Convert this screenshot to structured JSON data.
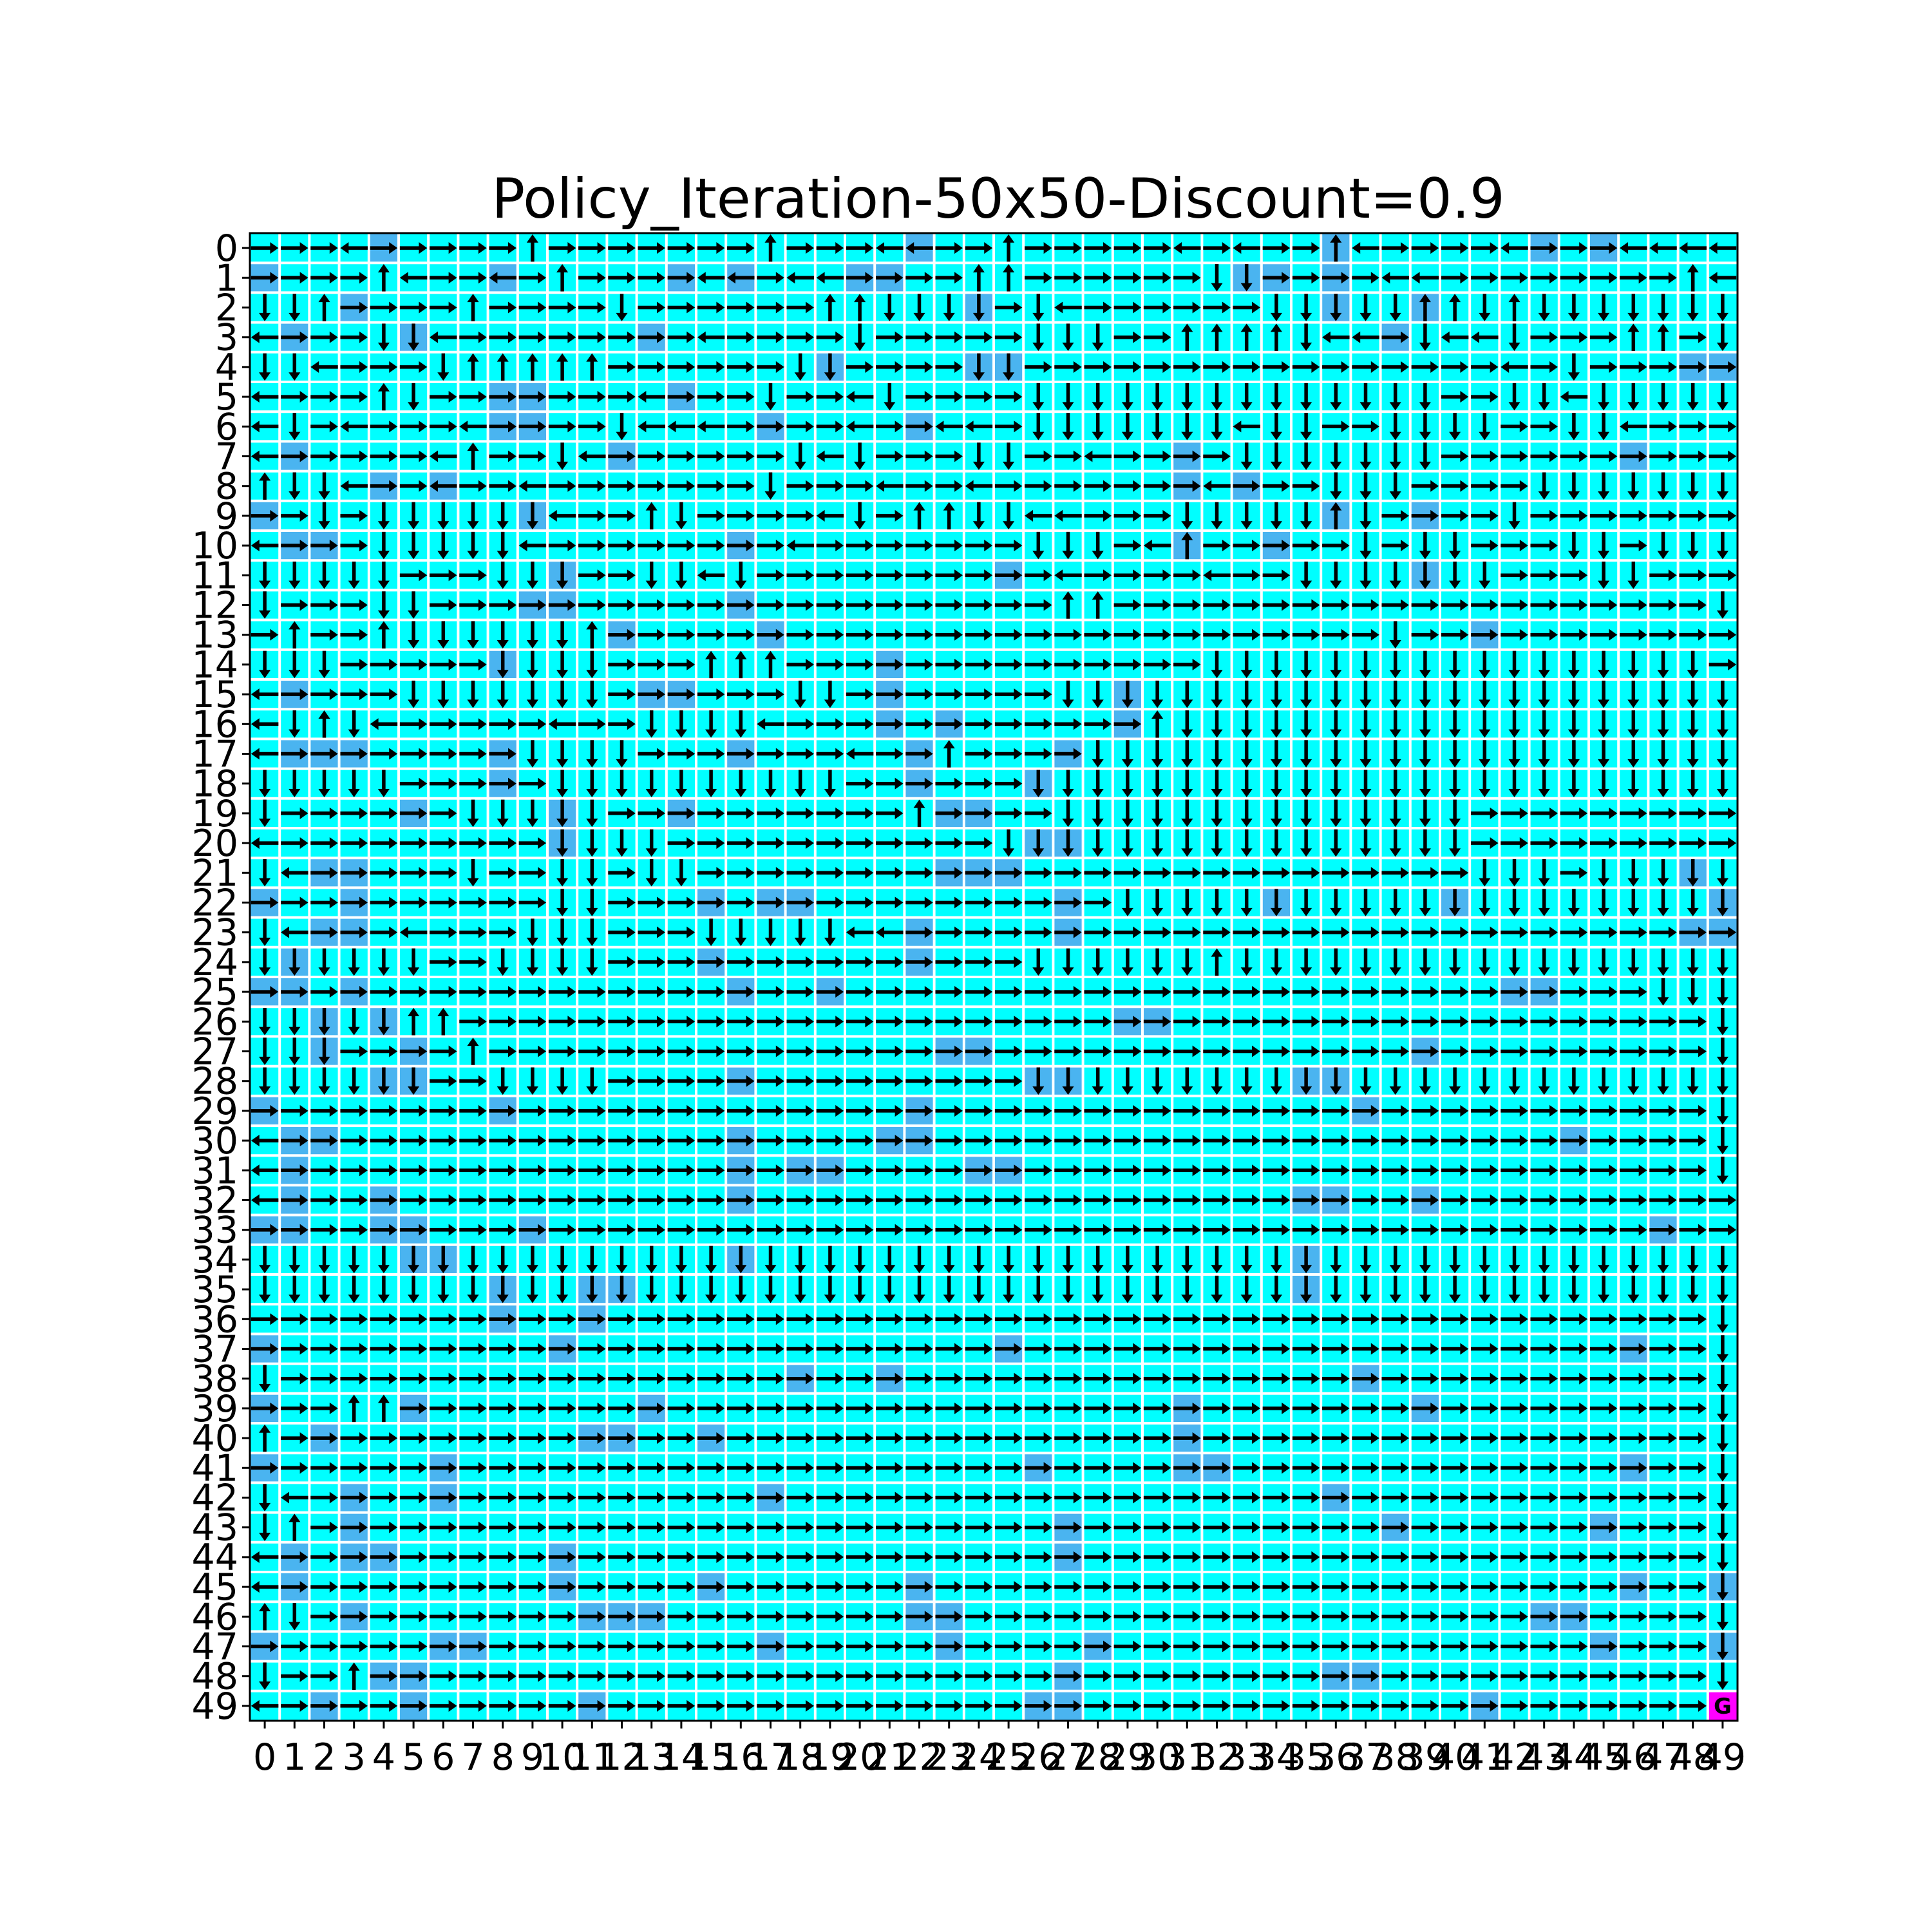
{
  "chart_data": {
    "type": "heatmap",
    "title": "Policy_Iteration-50x50-Discount=0.9",
    "grid_size": 50,
    "xlim": [
      0,
      49
    ],
    "ylim": [
      0,
      49
    ],
    "x_ticks": [
      0,
      1,
      2,
      3,
      4,
      5,
      6,
      7,
      8,
      9,
      10,
      11,
      12,
      13,
      14,
      15,
      16,
      17,
      18,
      19,
      20,
      21,
      22,
      23,
      24,
      25,
      26,
      27,
      28,
      29,
      30,
      31,
      32,
      33,
      34,
      35,
      36,
      37,
      38,
      39,
      40,
      41,
      42,
      43,
      44,
      45,
      46,
      47,
      48,
      49
    ],
    "y_ticks": [
      0,
      1,
      2,
      3,
      4,
      5,
      6,
      7,
      8,
      9,
      10,
      11,
      12,
      13,
      14,
      15,
      16,
      17,
      18,
      19,
      20,
      21,
      22,
      23,
      24,
      25,
      26,
      27,
      28,
      29,
      30,
      31,
      32,
      33,
      34,
      35,
      36,
      37,
      38,
      39,
      40,
      41,
      42,
      43,
      44,
      45,
      46,
      47,
      48,
      49
    ],
    "grid": true,
    "legend": "none",
    "cell_colors": {
      "frozen": "#00ffff",
      "hole": "#4ab4f0",
      "goal": "#ff00ff",
      "gridline": "#ffffff"
    },
    "goal": {
      "row": 49,
      "col": 49,
      "label": "G"
    },
    "actions": [
      "left",
      "down",
      "right",
      "up"
    ],
    "policy_rows": [
      "RRRLRRRRRURRRRRRRURRRLLRRURRRRRLRLRRULRRRRLRRRLLLL",
      "RRRRULRRLRURRRRLLRLLRRRRUURRRRRRDDRRRRLLRRRRRRRRUL",
      "DDURRRRURRRRDRRRRRRUUDDDDRDLRRRRRRDDDDDUUDUDDDDDDD",
      "LRRRDDLRRRRRRRRLRRRRDRRRRRDDDRRUUUUDLLRDLLDRRRUURD",
      "DDLRRRDUUUUURRRRRRDDRRRRDDRRRRRRRRRRRRRRRRLRDRRRRR",
      "LRRRUDRRRRRRRLRRRDRRLDRRRRDDDDDDDDDDDDDDRRDDLDDDDD",
      "LDRLRRRLRRRRDLLLRRRRLRRLLRDDDDDDDLDDRRDDDDRRDDLRRR",
      "LRRRRRLURRDLRRRRRRDLDRRRDDRRLRRRRDDDDDDDRRRRRRRRRR",
      "UDDLRRLRRLRRRRRRRDRRRLRRLRRRRRRRLRRRDDDRRRRDDDDDDD",
      "RRDRDDDDDDLRRUDRRRRLDRUUDDLLRRRDDDDDUDRRRRDRRRRRRR",
      "LRRRDDDDDLRRRRRRRRLRRRRRRRDDDRLURRRRRDRDDRRRDDRDDD",
      "DDDDDRRRDDDRRDDLDRRRRRRRRRRLRRRRLRRDDDDDDDRRRDDRRR",
      "DRRRDDRRRRRRRRRRRRRRRRRRRRRUURRRRRRRRRRRRRRRRRRRRD",
      "RURRUDDDDDDURRRRRRRRRRRRRRRRRRRRRRRRRRDRRRRRRRRRRR",
      "DDDRRRRRDDDDRRRUUURRRRRRRRRRRRRRDDDDDDDDDDDDDDDDDR",
      "LRRRRDDDDDDDRRRRRRDDRRRRRRRDDDDDDDDDDDDDDDDDDDDDDD",
      "LDUDLRRRRRLRRDDDDLRRRRRRRRRRRRUDDDDDDDDDDDDDDDDDDD",
      "LRRRRRRRRDDDDRRRRRRRLRRURRRRDDDDDDDDDDDDDDDDDDDDDD",
      "DDDDDRRRRRDDDDDDDDDDRRRRRRDDDDDDDDDDDDDDDDDDDDDDDD",
      "DRRRRRRDDDDDRRRRRRRRRRURRRRDDDDDDDDDDDDDDRRRRRRRRR",
      "LRRRRRRRRRDDDDRRRRRRRRRRRDDDDDDDDDDDDDDDDRRRRRRRRR",
      "DLRRRRRDRRDDRDDRRRRRRRRRRRRRRRRRRRRRRRRRRDDDRDDDDD",
      "RRRRRRRRRRDDRRRRRRRRRRRRRRRRRDDDDDDDDDDDDDDDDDDDDD",
      "DLRRRLRRRDDDRRRDDDDDLLRRRRRRRRRRRRRRRRRRRRRRRRRRRR",
      "DDDDDDRRDDDDRRRRRRRRRRRRRRDDDDDDUDDDDDDDDDDDDDDDDD",
      "RRRRRRRRRRRRRRRRRRRRRRRRRRRRRRRRRRRRRRRRRRRRRRRDDD",
      "DDDDDUURRRRRRRRRRRRRRRRRRRRRRRRRRRRRRRRRRRRRRRRRRD",
      "DDDRRRRURRRRRRRRRRRRRRRRRRRRRRRRRRRRRRRRRRRRRRRRRD",
      "DDDDDDRRDDDDRRRRRRRRRRRRRRDDDDDDDDDDDDDDDDDDDDDDDD",
      "RRRRRRRRRRRRRRRRRRRRRRRRRRRRRRRRRRRRRRRRRRRRRRRRRD",
      "LRRRRRRRRRRRRRRRRRRRRRRRRRRRRRRRRRRRRRRRRRRRRRRRRD",
      "LRRRRRRRRRRRRRRRRRRRRRRRRRRRRRRRRRRRRRRRRRRRRRRRRD",
      "LRRRRRRRRRRRRRRRRRRRRRRRRRRRRRRRRRRRRRRRRRRRRRRRRR",
      "RRRRRRRRRRRRRRRRRRRRRRRRRRRRRRRRRRRRRRRRRRRRRRRRRR",
      "DDDDDDDDDDDDDDDDDDDDDDDDDDDDDDDDDDDDDDDDDDDDDDDDDD",
      "DDDDDDDDDDDDDDDDDDDDDDDDDDDDDDDDDDDDDDDDDDDDDDDDDD",
      "RRRRRRRRRRRRRRRRRRRRRRRRRRRRRRRRRRRRRRRRRRRRRRRRRD",
      "RRRRRRRRRRRRRRRRRRRRRRRRRRRRRRRRRRRRRRRRRRRRRRRRRD",
      "DRRRRRRRRRRRRRRRRRRRRRRRRRRRRRRRRRRRRRRRRRRRRRRRRD",
      "RRRUURRRRRRRRRRRRRRRRRRRRRRRRRRRRRRRRRRRRRRRRRRRRD",
      "URRRRRRRRRRRRRRRRRRRRRRRRRRRRRRRRRRRRRRRRRRRRRRRRD",
      "RRRRRRRRRRRRRRRRRRRRRRRRRRRRRRRRRRRRRRRRRRRRRRRRRD",
      "DLRRRRRRRRRRRRRRRRRRRRRRRRRRRRRRRRRRRRRRRRRRRRRRRD",
      "DURRRRRRRRRRRRRRRRRRRRRRRRRRRRRRRRRRRRRRRRRRRRRRRD",
      "LRRRRRRRRRRRRRRRRRRRRRRRRRRRRRRRRRRRRRRRRRRRRRRRRD",
      "LRRRRRRRRRRRRRRRRRRRRRRRRRRRRRRRRRRRRRRRRRRRRRRRRD",
      "UDRRRRRRRRRRRRRRRRRRRRRRRRRRRRRRRRRRRRRRRRRRRRRRRD",
      "RRRRRRRRRRRRRRRRRRRRRRRRRRRRRRRRRRRRRRRRRRRRRRRRRD",
      "DRRURRRRRRRRRRRRRRRRRRRRRRRRRRRRRRRRRRRRRRRRRRRRRD",
      "LRRRRRRRRRRRRRRRRRRRRRRRRRRRRRRRRRRRRRRRRRRRRRRRRG"
    ],
    "hole_cells": [
      [
        0,
        4
      ],
      [
        0,
        22
      ],
      [
        0,
        36
      ],
      [
        0,
        43
      ],
      [
        0,
        45
      ],
      [
        1,
        0
      ],
      [
        1,
        8
      ],
      [
        1,
        14
      ],
      [
        1,
        16
      ],
      [
        1,
        20
      ],
      [
        1,
        21
      ],
      [
        1,
        33
      ],
      [
        1,
        34
      ],
      [
        1,
        36
      ],
      [
        2,
        3
      ],
      [
        2,
        24
      ],
      [
        2,
        36
      ],
      [
        2,
        39
      ],
      [
        3,
        1
      ],
      [
        3,
        5
      ],
      [
        3,
        13
      ],
      [
        3,
        38
      ],
      [
        4,
        19
      ],
      [
        4,
        24
      ],
      [
        4,
        25
      ],
      [
        4,
        48
      ],
      [
        4,
        49
      ],
      [
        5,
        8
      ],
      [
        5,
        9
      ],
      [
        5,
        14
      ],
      [
        6,
        8
      ],
      [
        6,
        9
      ],
      [
        6,
        17
      ],
      [
        6,
        22
      ],
      [
        7,
        1
      ],
      [
        7,
        12
      ],
      [
        7,
        31
      ],
      [
        7,
        46
      ],
      [
        8,
        4
      ],
      [
        8,
        6
      ],
      [
        8,
        31
      ],
      [
        8,
        33
      ],
      [
        9,
        0
      ],
      [
        9,
        9
      ],
      [
        9,
        36
      ],
      [
        9,
        39
      ],
      [
        10,
        1
      ],
      [
        10,
        2
      ],
      [
        10,
        16
      ],
      [
        10,
        31
      ],
      [
        10,
        34
      ],
      [
        11,
        10
      ],
      [
        11,
        25
      ],
      [
        11,
        39
      ],
      [
        12,
        9
      ],
      [
        12,
        10
      ],
      [
        12,
        16
      ],
      [
        13,
        12
      ],
      [
        13,
        17
      ],
      [
        13,
        41
      ],
      [
        14,
        8
      ],
      [
        14,
        21
      ],
      [
        15,
        1
      ],
      [
        15,
        13
      ],
      [
        15,
        14
      ],
      [
        15,
        21
      ],
      [
        15,
        29
      ],
      [
        16,
        21
      ],
      [
        16,
        23
      ],
      [
        16,
        29
      ],
      [
        17,
        1
      ],
      [
        17,
        2
      ],
      [
        17,
        3
      ],
      [
        17,
        8
      ],
      [
        17,
        16
      ],
      [
        17,
        22
      ],
      [
        17,
        27
      ],
      [
        18,
        8
      ],
      [
        18,
        22
      ],
      [
        18,
        26
      ],
      [
        19,
        5
      ],
      [
        19,
        10
      ],
      [
        19,
        14
      ],
      [
        19,
        23
      ],
      [
        19,
        24
      ],
      [
        20,
        10
      ],
      [
        20,
        26
      ],
      [
        20,
        27
      ],
      [
        21,
        2
      ],
      [
        21,
        3
      ],
      [
        21,
        23
      ],
      [
        21,
        24
      ],
      [
        21,
        25
      ],
      [
        21,
        48
      ],
      [
        22,
        0
      ],
      [
        22,
        3
      ],
      [
        22,
        15
      ],
      [
        22,
        17
      ],
      [
        22,
        18
      ],
      [
        22,
        27
      ],
      [
        22,
        34
      ],
      [
        22,
        40
      ],
      [
        22,
        49
      ],
      [
        23,
        2
      ],
      [
        23,
        3
      ],
      [
        23,
        22
      ],
      [
        23,
        27
      ],
      [
        23,
        48
      ],
      [
        23,
        49
      ],
      [
        24,
        1
      ],
      [
        24,
        15
      ],
      [
        24,
        22
      ],
      [
        25,
        0
      ],
      [
        25,
        1
      ],
      [
        25,
        3
      ],
      [
        25,
        16
      ],
      [
        25,
        19
      ],
      [
        25,
        42
      ],
      [
        25,
        43
      ],
      [
        26,
        2
      ],
      [
        26,
        4
      ],
      [
        26,
        29
      ],
      [
        26,
        30
      ],
      [
        27,
        2
      ],
      [
        27,
        5
      ],
      [
        27,
        23
      ],
      [
        27,
        24
      ],
      [
        27,
        39
      ],
      [
        28,
        4
      ],
      [
        28,
        5
      ],
      [
        28,
        16
      ],
      [
        28,
        26
      ],
      [
        28,
        27
      ],
      [
        28,
        35
      ],
      [
        28,
        36
      ],
      [
        29,
        0
      ],
      [
        29,
        8
      ],
      [
        29,
        22
      ],
      [
        29,
        37
      ],
      [
        30,
        1
      ],
      [
        30,
        2
      ],
      [
        30,
        16
      ],
      [
        30,
        21
      ],
      [
        30,
        22
      ],
      [
        30,
        44
      ],
      [
        31,
        1
      ],
      [
        31,
        16
      ],
      [
        31,
        18
      ],
      [
        31,
        19
      ],
      [
        31,
        24
      ],
      [
        31,
        25
      ],
      [
        32,
        1
      ],
      [
        32,
        4
      ],
      [
        32,
        16
      ],
      [
        32,
        35
      ],
      [
        32,
        36
      ],
      [
        32,
        39
      ],
      [
        33,
        0
      ],
      [
        33,
        1
      ],
      [
        33,
        4
      ],
      [
        33,
        5
      ],
      [
        33,
        9
      ],
      [
        33,
        47
      ],
      [
        34,
        5
      ],
      [
        34,
        6
      ],
      [
        34,
        16
      ],
      [
        34,
        35
      ],
      [
        35,
        8
      ],
      [
        35,
        11
      ],
      [
        35,
        12
      ],
      [
        35,
        35
      ],
      [
        36,
        8
      ],
      [
        36,
        11
      ],
      [
        37,
        0
      ],
      [
        37,
        10
      ],
      [
        37,
        25
      ],
      [
        37,
        46
      ],
      [
        38,
        18
      ],
      [
        38,
        21
      ],
      [
        38,
        37
      ],
      [
        39,
        0
      ],
      [
        39,
        5
      ],
      [
        39,
        13
      ],
      [
        39,
        31
      ],
      [
        39,
        39
      ],
      [
        40,
        2
      ],
      [
        40,
        11
      ],
      [
        40,
        12
      ],
      [
        40,
        15
      ],
      [
        40,
        31
      ],
      [
        41,
        0
      ],
      [
        41,
        6
      ],
      [
        41,
        26
      ],
      [
        41,
        31
      ],
      [
        41,
        32
      ],
      [
        41,
        46
      ],
      [
        42,
        3
      ],
      [
        42,
        6
      ],
      [
        42,
        17
      ],
      [
        42,
        36
      ],
      [
        43,
        3
      ],
      [
        43,
        27
      ],
      [
        43,
        38
      ],
      [
        43,
        45
      ],
      [
        44,
        1
      ],
      [
        44,
        3
      ],
      [
        44,
        4
      ],
      [
        44,
        10
      ],
      [
        44,
        27
      ],
      [
        45,
        1
      ],
      [
        45,
        10
      ],
      [
        45,
        15
      ],
      [
        45,
        22
      ],
      [
        45,
        46
      ],
      [
        45,
        49
      ],
      [
        46,
        3
      ],
      [
        46,
        11
      ],
      [
        46,
        12
      ],
      [
        46,
        13
      ],
      [
        46,
        22
      ],
      [
        46,
        23
      ],
      [
        46,
        43
      ],
      [
        46,
        44
      ],
      [
        47,
        0
      ],
      [
        47,
        6
      ],
      [
        47,
        7
      ],
      [
        47,
        17
      ],
      [
        47,
        23
      ],
      [
        47,
        28
      ],
      [
        47,
        45
      ],
      [
        47,
        49
      ],
      [
        48,
        4
      ],
      [
        48,
        5
      ],
      [
        48,
        27
      ],
      [
        48,
        36
      ],
      [
        48,
        37
      ],
      [
        49,
        2
      ],
      [
        49,
        5
      ],
      [
        49,
        11
      ],
      [
        49,
        26
      ],
      [
        49,
        27
      ],
      [
        49,
        41
      ]
    ]
  }
}
